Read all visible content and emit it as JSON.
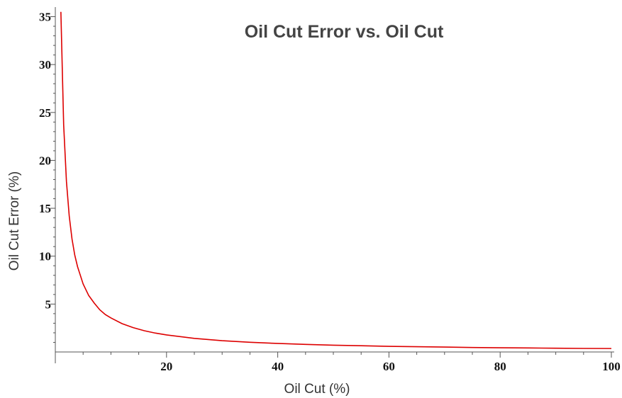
{
  "chart_data": {
    "type": "line",
    "title": "Oil Cut Error vs. Oil Cut",
    "xlabel": "Oil Cut (%)",
    "ylabel": "Oil Cut Error (%)",
    "xlim": [
      0,
      100
    ],
    "ylim": [
      0,
      36
    ],
    "x_ticks": [
      20,
      40,
      60,
      80,
      100
    ],
    "y_ticks": [
      5,
      10,
      15,
      20,
      25,
      30,
      35
    ],
    "grid": false,
    "series": [
      {
        "color": "#dd0000",
        "x": [
          1,
          1.5,
          2,
          2.5,
          3,
          3.5,
          4,
          5,
          6,
          7,
          8,
          9,
          10,
          12,
          14,
          16,
          18,
          20,
          25,
          30,
          35,
          40,
          45,
          50,
          55,
          60,
          65,
          70,
          75,
          80,
          85,
          90,
          95,
          100
        ],
        "y": [
          35.5,
          23.7,
          17.8,
          14.2,
          11.8,
          10.1,
          8.9,
          7.1,
          5.9,
          5.1,
          4.4,
          3.9,
          3.55,
          2.96,
          2.54,
          2.22,
          1.97,
          1.78,
          1.42,
          1.18,
          1.01,
          0.89,
          0.79,
          0.71,
          0.65,
          0.59,
          0.55,
          0.51,
          0.47,
          0.44,
          0.42,
          0.39,
          0.37,
          0.36
        ]
      }
    ]
  }
}
